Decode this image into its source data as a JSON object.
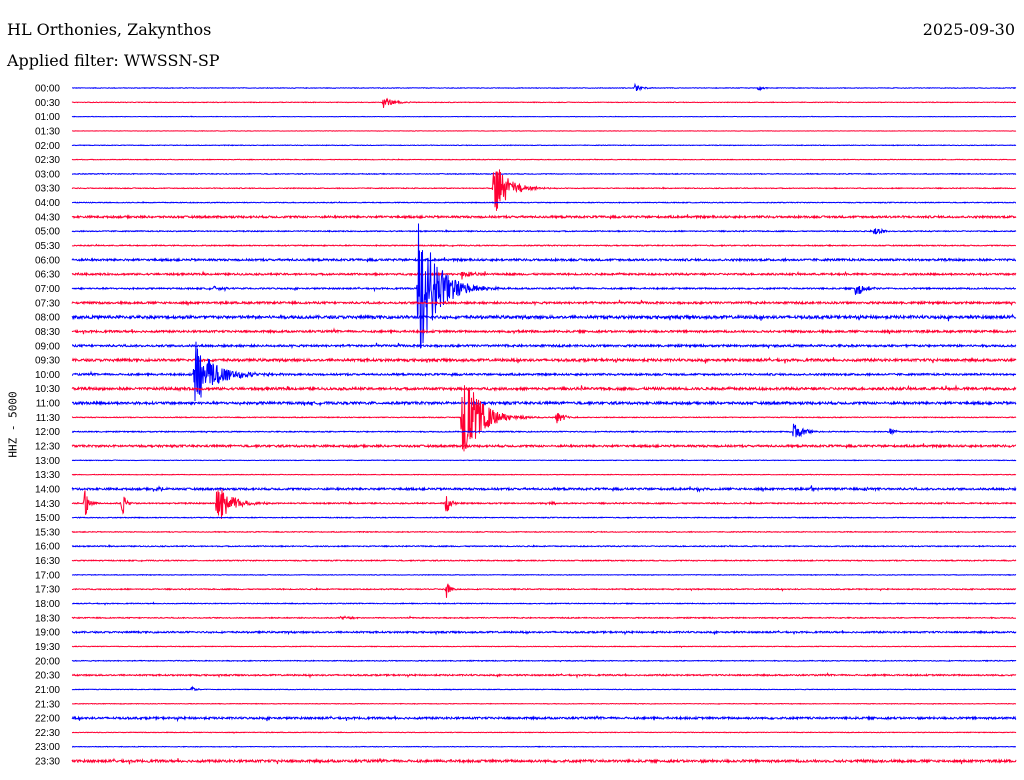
{
  "header": {
    "station": "HL Orthonies, Zakynthos",
    "filter": "Applied filter: WWSSN-SP",
    "date": "2025-09-30"
  },
  "chart_data": {
    "type": "line",
    "title": "HL Orthonies, Zakynthos",
    "ylabel": "HHZ - 5000",
    "row_minutes": 30,
    "colors": [
      "#0000ff",
      "#ff0033"
    ],
    "rows": [
      "00:00",
      "00:30",
      "01:00",
      "01:30",
      "02:00",
      "02:30",
      "03:00",
      "03:30",
      "04:00",
      "04:30",
      "05:00",
      "05:30",
      "06:00",
      "06:30",
      "07:00",
      "07:30",
      "08:00",
      "08:30",
      "09:00",
      "09:30",
      "10:00",
      "10:30",
      "11:00",
      "11:30",
      "12:00",
      "12:30",
      "13:00",
      "13:30",
      "14:00",
      "14:30",
      "15:00",
      "15:30",
      "16:00",
      "16:30",
      "17:00",
      "17:30",
      "18:00",
      "18:30",
      "19:00",
      "19:30",
      "20:00",
      "20:30",
      "21:00",
      "21:30",
      "22:00",
      "22:30",
      "23:00",
      "23:30"
    ],
    "noise_level": [
      0.3,
      0.3,
      0.2,
      0.2,
      0.3,
      0.3,
      0.4,
      0.4,
      0.4,
      1.0,
      0.5,
      0.5,
      1.0,
      0.9,
      0.7,
      1.0,
      1.4,
      1.0,
      1.0,
      1.2,
      0.9,
      1.2,
      1.2,
      0.4,
      0.5,
      1.0,
      0.3,
      0.3,
      1.0,
      0.6,
      0.4,
      0.4,
      0.5,
      0.5,
      0.3,
      0.5,
      0.4,
      0.5,
      0.8,
      0.3,
      0.4,
      0.7,
      0.3,
      0.3,
      1.0,
      0.3,
      0.3,
      1.2
    ],
    "events": [
      {
        "row": 0,
        "minute": 17.9,
        "amplitude": 4,
        "duration": 0.6
      },
      {
        "row": 0,
        "minute": 21.8,
        "amplitude": 2,
        "duration": 0.6
      },
      {
        "row": 1,
        "minute": 9.9,
        "amplitude": 6,
        "duration": 0.8
      },
      {
        "row": 7,
        "minute": 13.4,
        "amplitude": 30,
        "duration": 1.2
      },
      {
        "row": 10,
        "minute": 25.5,
        "amplitude": 4,
        "duration": 0.8
      },
      {
        "row": 13,
        "minute": 12.4,
        "amplitude": 6,
        "duration": 0.8
      },
      {
        "row": 14,
        "minute": 11.0,
        "amplitude": 75,
        "duration": 1.6
      },
      {
        "row": 14,
        "minute": 24.9,
        "amplitude": 9,
        "duration": 0.7
      },
      {
        "row": 14,
        "minute": 4.5,
        "amplitude": 2,
        "duration": 0.8
      },
      {
        "row": 17,
        "minute": 14.0,
        "amplitude": 2,
        "duration": 0.8
      },
      {
        "row": 20,
        "minute": 3.9,
        "amplitude": 35,
        "duration": 1.8
      },
      {
        "row": 23,
        "minute": 12.4,
        "amplitude": 50,
        "duration": 1.5
      },
      {
        "row": 23,
        "minute": 15.4,
        "amplitude": 6,
        "duration": 0.7
      },
      {
        "row": 24,
        "minute": 22.9,
        "amplitude": 10,
        "duration": 0.8
      },
      {
        "row": 24,
        "minute": 26.0,
        "amplitude": 3,
        "duration": 0.6
      },
      {
        "row": 28,
        "minute": 2.6,
        "amplitude": 4,
        "duration": 0.5
      },
      {
        "row": 28,
        "minute": 19.9,
        "amplitude": 3,
        "duration": 0.4
      },
      {
        "row": 28,
        "minute": 23.5,
        "amplitude": 3,
        "duration": 0.4
      },
      {
        "row": 28,
        "minute": 25.2,
        "amplitude": 3,
        "duration": 0.4
      },
      {
        "row": 29,
        "minute": 0.4,
        "amplitude": 18,
        "duration": 0.3
      },
      {
        "row": 29,
        "minute": 1.6,
        "amplitude": 14,
        "duration": 0.3
      },
      {
        "row": 29,
        "minute": 4.6,
        "amplitude": 22,
        "duration": 1.2
      },
      {
        "row": 29,
        "minute": 11.9,
        "amplitude": 15,
        "duration": 0.3
      },
      {
        "row": 29,
        "minute": 15.2,
        "amplitude": 2,
        "duration": 0.4
      },
      {
        "row": 35,
        "minute": 11.9,
        "amplitude": 10,
        "duration": 0.3
      },
      {
        "row": 37,
        "minute": 8.5,
        "amplitude": 2,
        "duration": 1.2
      },
      {
        "row": 42,
        "minute": 3.8,
        "amplitude": 3,
        "duration": 0.4
      }
    ]
  }
}
